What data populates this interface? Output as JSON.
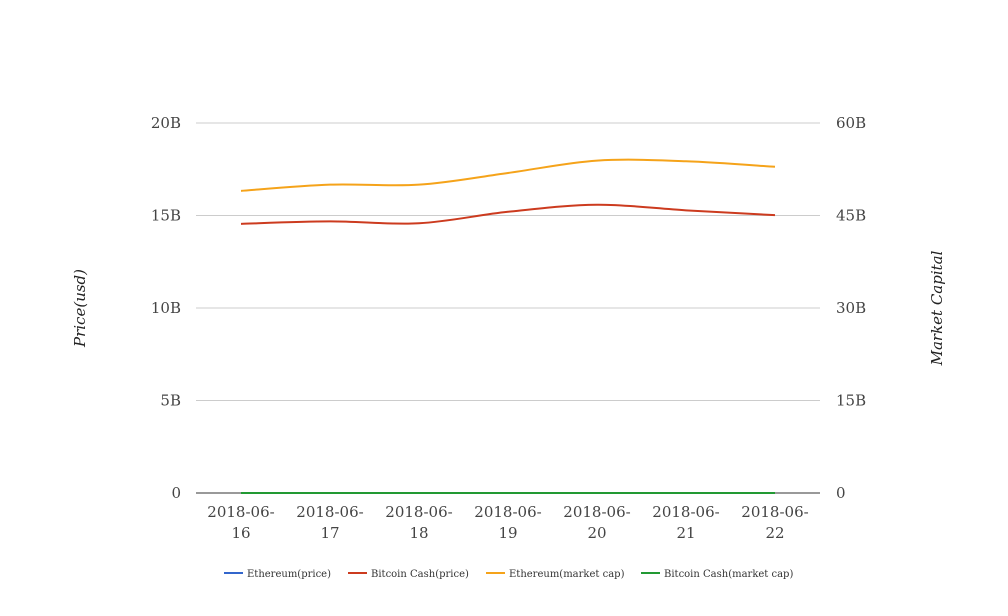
{
  "chart_data": {
    "type": "line",
    "categories": [
      [
        "2018-06-",
        "16"
      ],
      [
        "2018-06-",
        "17"
      ],
      [
        "2018-06-",
        "18"
      ],
      [
        "2018-06-",
        "19"
      ],
      [
        "2018-06-",
        "20"
      ],
      [
        "2018-06-",
        "21"
      ],
      [
        "2018-06-",
        "22"
      ]
    ],
    "y_left": {
      "label": "Price(usd)",
      "ticks": [
        0,
        5000000000,
        10000000000,
        15000000000,
        20000000000
      ],
      "tick_labels": [
        "0",
        "5B",
        "10B",
        "15B",
        "20B"
      ],
      "ylim": [
        0,
        20000000000
      ]
    },
    "y_right": {
      "label": "Market Capital",
      "ticks": [
        0,
        15000000000,
        30000000000,
        45000000000,
        60000000000
      ],
      "tick_labels": [
        "0",
        "15B",
        "30B",
        "45B",
        "60B"
      ],
      "ylim": [
        0,
        60000000000
      ]
    },
    "grid": true,
    "legend_position": "bottom",
    "series": [
      {
        "name": "Ethereum(price)",
        "axis": "left",
        "color": "#3366cc",
        "values": [
          500,
          510,
          505,
          530,
          540,
          525,
          510
        ]
      },
      {
        "name": "Bitcoin Cash(price)",
        "axis": "left",
        "color": "#cc3b1f",
        "values": [
          14550000000,
          14680000000,
          14580000000,
          15200000000,
          15580000000,
          15280000000,
          15020000000
        ]
      },
      {
        "name": "Ethereum(market cap)",
        "axis": "right",
        "color": "#f5a31a",
        "values": [
          49000000000,
          50000000000,
          50000000000,
          51900000000,
          53900000000,
          53800000000,
          52900000000
        ]
      },
      {
        "name": "Bitcoin Cash(market cap)",
        "axis": "right",
        "color": "#229933",
        "values": [
          800,
          820,
          810,
          850,
          870,
          860,
          840
        ]
      }
    ]
  }
}
